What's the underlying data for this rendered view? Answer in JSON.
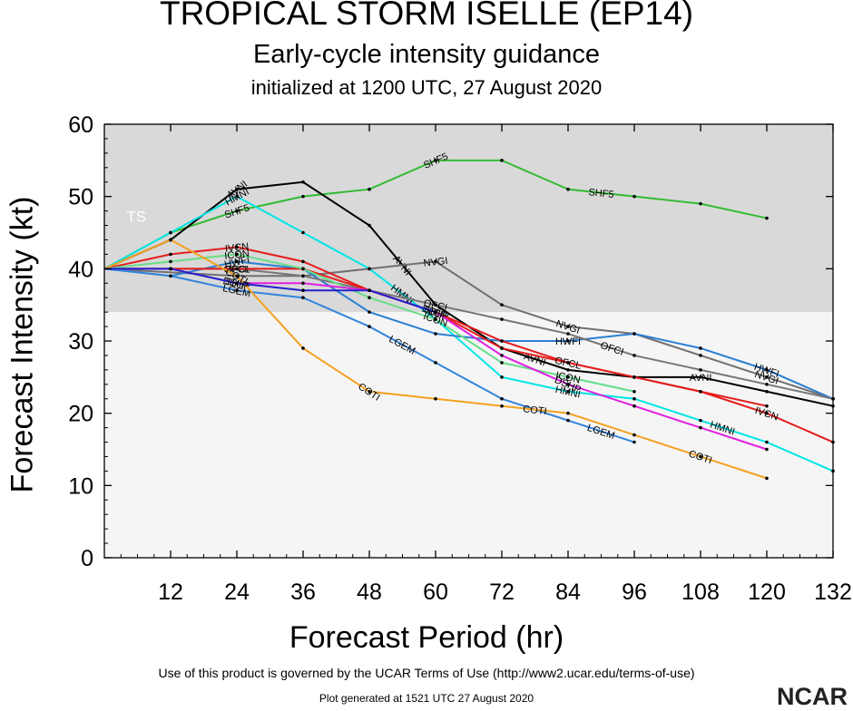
{
  "header": {
    "title": "TROPICAL STORM ISELLE (EP14)",
    "subtitle": "Early-cycle intensity guidance",
    "init": "initialized at 1200 UTC, 27 August 2020"
  },
  "footer": {
    "terms": "Use of this product is governed by the UCAR Terms of Use (http://www2.ucar.edu/terms-of-use)",
    "generated": "Plot generated at 1521 UTC   27 August 2020",
    "logo_text": "NCAR"
  },
  "chart_data": {
    "type": "line",
    "xlabel": "Forecast Period (hr)",
    "ylabel": "Forecast Intensity (kt)",
    "xlim": [
      0,
      132
    ],
    "ylim": [
      0,
      60
    ],
    "xticks": [
      12,
      24,
      36,
      48,
      60,
      72,
      84,
      96,
      108,
      120,
      132
    ],
    "yticks": [
      0,
      10,
      20,
      30,
      40,
      50,
      60
    ],
    "shaded_band": {
      "from": 34,
      "to": 60,
      "color": "#d9d9d9",
      "label": "TS"
    },
    "lower_band_color": "#f5f5f5",
    "series": [
      {
        "name": "SHF5",
        "color": "#33bb33",
        "x": [
          0,
          12,
          24,
          36,
          48,
          60,
          72,
          84,
          96,
          108,
          120
        ],
        "y": [
          40,
          45,
          48,
          50,
          51,
          55,
          55,
          51,
          50,
          49,
          47
        ],
        "label_at": [
          24,
          60,
          90
        ]
      },
      {
        "name": "AVNI",
        "color": "#000000",
        "x": [
          0,
          12,
          24,
          36,
          48,
          60,
          72,
          84,
          96,
          108,
          120,
          132
        ],
        "y": [
          40,
          44,
          51,
          52,
          46,
          35,
          29,
          26,
          25,
          25,
          23,
          21
        ],
        "label_at": [
          24,
          54,
          78,
          108
        ]
      },
      {
        "name": "HMNI",
        "color": "#00e5e5",
        "x": [
          0,
          12,
          24,
          36,
          48,
          60,
          72,
          84,
          96,
          108,
          120,
          132
        ],
        "y": [
          40,
          45,
          50,
          45,
          40,
          33,
          25,
          23,
          22,
          19,
          16,
          12
        ],
        "label_at": [
          24,
          54,
          84,
          112
        ]
      },
      {
        "name": "NVGI",
        "color": "#707070",
        "x": [
          0,
          24,
          36,
          48,
          60,
          72,
          84,
          96,
          108,
          120,
          132
        ],
        "y": [
          40,
          39,
          39,
          40,
          41,
          35,
          32,
          31,
          28,
          25,
          22
        ],
        "label_at": [
          60,
          84,
          120
        ]
      },
      {
        "name": "HWFI",
        "color": "#2a7fd4",
        "x": [
          0,
          12,
          24,
          36,
          48,
          60,
          72,
          84,
          96,
          108,
          120,
          132
        ],
        "y": [
          40,
          39,
          41,
          40,
          34,
          31,
          30,
          30,
          31,
          29,
          26,
          22
        ],
        "label_at": [
          24,
          84,
          120
        ]
      },
      {
        "name": "OFCI",
        "color": "#777777",
        "x": [
          0,
          12,
          24,
          36,
          48,
          60,
          72,
          84,
          96,
          108,
          120,
          132
        ],
        "y": [
          40,
          40,
          40,
          39,
          37,
          35,
          33,
          31,
          28,
          26,
          24,
          22
        ],
        "label_at": [
          24,
          60,
          92
        ]
      },
      {
        "name": "IVCN",
        "color": "#e51c1c",
        "x": [
          0,
          12,
          24,
          36,
          48,
          60,
          72,
          84,
          96,
          108,
          120,
          132
        ],
        "y": [
          40,
          42,
          43,
          41,
          37,
          34,
          30,
          27,
          25,
          23,
          20,
          16
        ],
        "label_at": [
          24,
          60,
          120
        ]
      },
      {
        "name": "OFCL",
        "color": "#e51c1c",
        "x": [
          0,
          12,
          24,
          36,
          48,
          60,
          72,
          84,
          96,
          108,
          120
        ],
        "y": [
          40,
          40,
          40,
          40,
          37,
          34,
          29,
          27,
          25,
          23,
          21
        ],
        "label_at": [
          24,
          84
        ]
      },
      {
        "name": "ICON",
        "color": "#66dd88",
        "x": [
          0,
          12,
          24,
          36,
          48,
          60,
          72,
          84,
          96
        ],
        "y": [
          40,
          41,
          42,
          40,
          36,
          33,
          27,
          25,
          23
        ],
        "label_at": [
          24,
          60,
          84
        ]
      },
      {
        "name": "DSHP",
        "color": "#e020e0",
        "x": [
          0,
          12,
          24,
          36,
          48,
          60,
          72,
          84,
          96,
          108,
          120
        ],
        "y": [
          40,
          40,
          38,
          38,
          37,
          34,
          28,
          24,
          21,
          18,
          15
        ],
        "label_at": [
          24,
          60,
          84
        ]
      },
      {
        "name": "LGEM",
        "color": "#3385dd",
        "x": [
          0,
          12,
          24,
          36,
          48,
          60,
          72,
          84,
          96
        ],
        "y": [
          40,
          39,
          37,
          36,
          32,
          27,
          22,
          19,
          16
        ],
        "label_at": [
          24,
          54,
          90
        ]
      },
      {
        "name": "COTI",
        "color": "#f5a020",
        "x": [
          0,
          12,
          24,
          36,
          48,
          60,
          72,
          84,
          96,
          108,
          120
        ],
        "y": [
          40,
          44,
          39,
          29,
          23,
          22,
          21,
          20,
          17,
          14,
          11
        ],
        "label_at": [
          24,
          48,
          78,
          108
        ]
      },
      {
        "name": "SHIP",
        "color": "#2222cc",
        "x": [
          0,
          12,
          24,
          36,
          48,
          60
        ],
        "y": [
          40,
          40,
          38,
          37,
          37,
          34
        ],
        "label_at": [
          24,
          60
        ]
      }
    ]
  }
}
